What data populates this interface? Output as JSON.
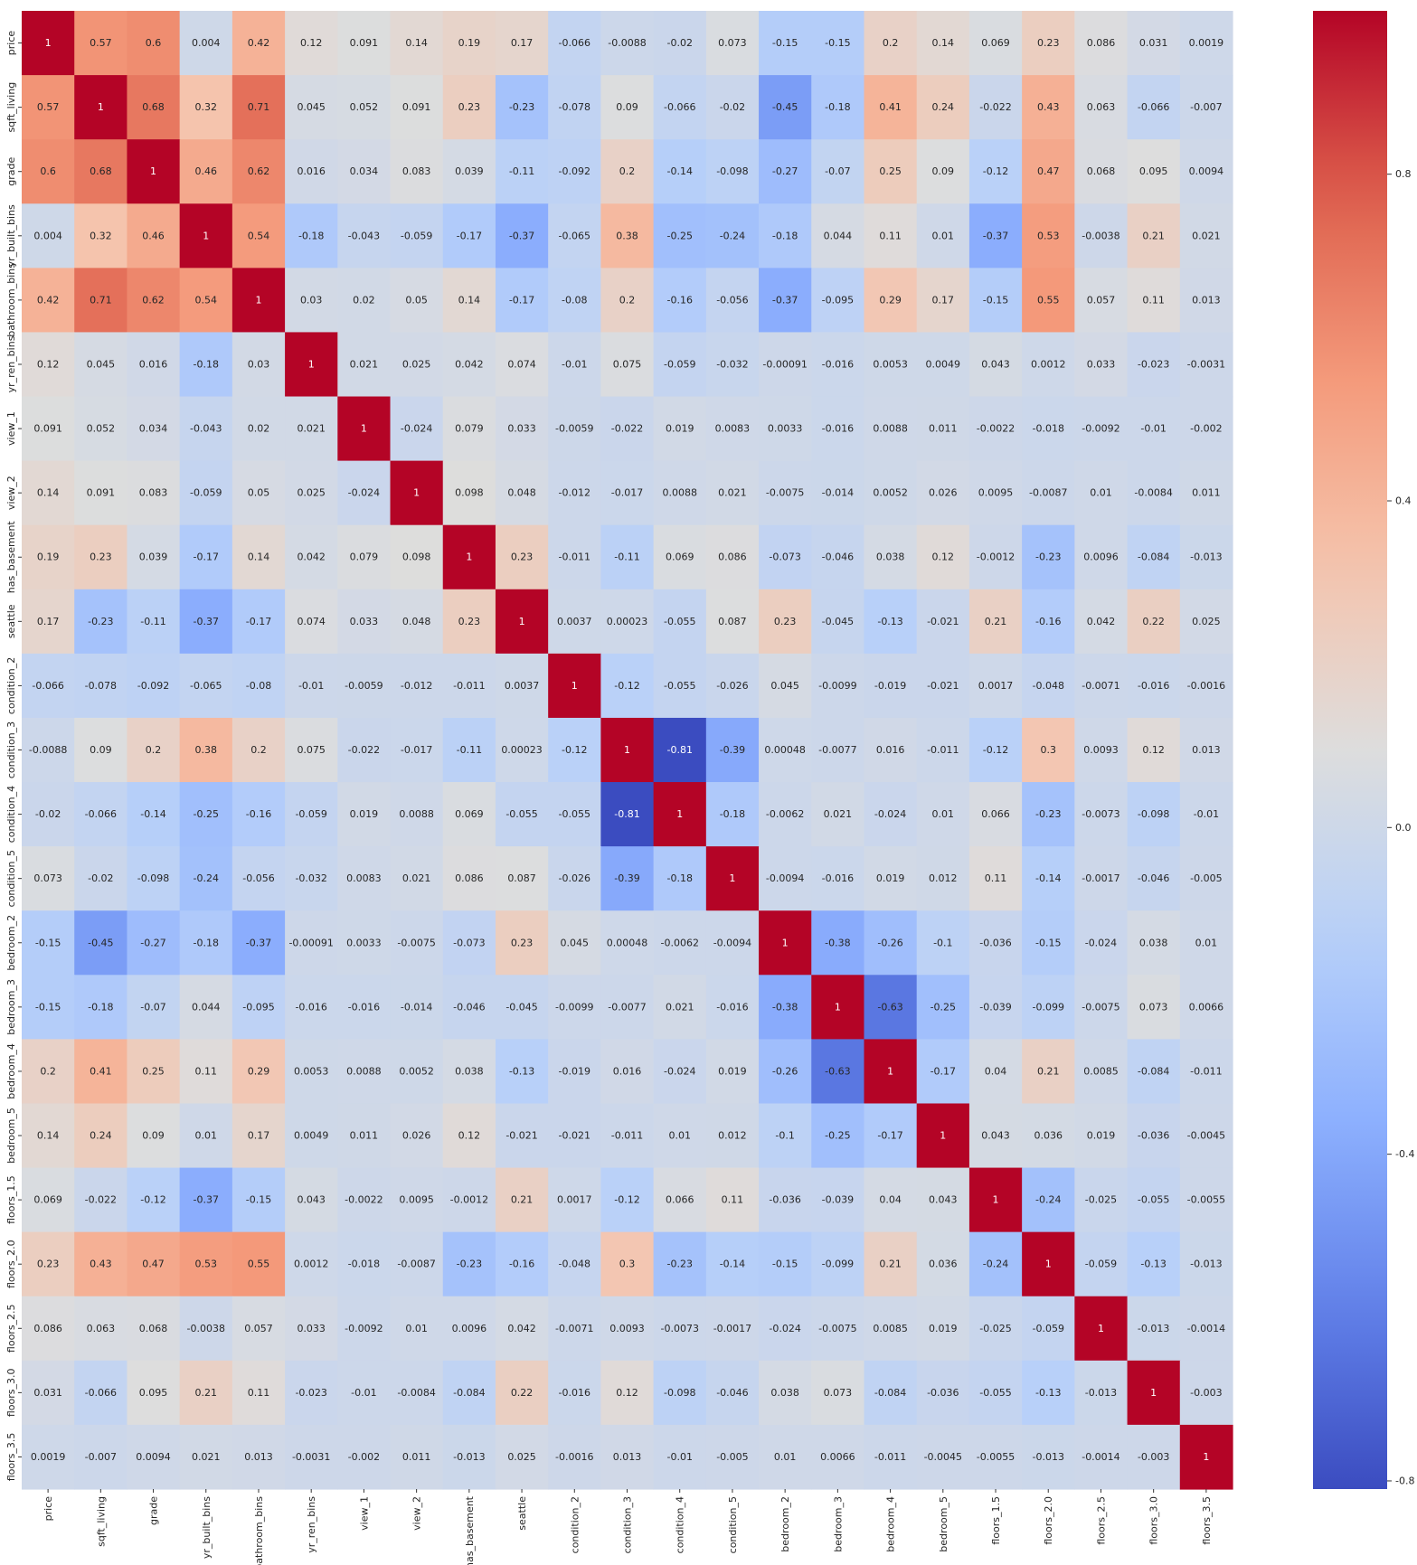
{
  "chart_data": {
    "type": "heatmap",
    "title": "",
    "xlabel": "",
    "ylabel": "",
    "labels": [
      "price",
      "sqft_living",
      "grade",
      "yr_built_bins",
      "bathroom_bins",
      "yr_ren_bins",
      "view_1",
      "view_2",
      "has_basement",
      "seattle",
      "condition_2",
      "condition_3",
      "condition_4",
      "condition_5",
      "bedroom_2",
      "bedroom_3",
      "bedroom_4",
      "bedroom_5",
      "floors_1.5",
      "floors_2.0",
      "floors_2.5",
      "floors_3.0",
      "floors_3.5"
    ],
    "matrix": [
      [
        1,
        0.57,
        0.6,
        0.004,
        0.42,
        0.12,
        0.091,
        0.14,
        0.19,
        0.17,
        -0.066,
        -0.0088,
        -0.02,
        0.073,
        -0.15,
        -0.15,
        0.2,
        0.14,
        0.069,
        0.23,
        0.086,
        0.031,
        0.0019
      ],
      [
        0.57,
        1,
        0.68,
        0.32,
        0.71,
        0.045,
        0.052,
        0.091,
        0.23,
        -0.23,
        -0.078,
        0.09,
        -0.066,
        -0.02,
        -0.45,
        -0.18,
        0.41,
        0.24,
        -0.022,
        0.43,
        0.063,
        -0.066,
        -0.007
      ],
      [
        0.6,
        0.68,
        1,
        0.46,
        0.62,
        0.016,
        0.034,
        0.083,
        0.039,
        -0.11,
        -0.092,
        0.2,
        -0.14,
        -0.098,
        -0.27,
        -0.07,
        0.25,
        0.09,
        -0.12,
        0.47,
        0.068,
        0.095,
        0.0094
      ],
      [
        0.004,
        0.32,
        0.46,
        1,
        0.54,
        -0.18,
        -0.043,
        -0.059,
        -0.17,
        -0.37,
        -0.065,
        0.38,
        -0.25,
        -0.24,
        -0.18,
        0.044,
        0.11,
        0.01,
        -0.37,
        0.53,
        -0.0038,
        0.21,
        0.021
      ],
      [
        0.42,
        0.71,
        0.62,
        0.54,
        1,
        0.03,
        0.02,
        0.05,
        0.14,
        -0.17,
        -0.08,
        0.2,
        -0.16,
        -0.056,
        -0.37,
        -0.095,
        0.29,
        0.17,
        -0.15,
        0.55,
        0.057,
        0.11,
        0.013
      ],
      [
        0.12,
        0.045,
        0.016,
        -0.18,
        0.03,
        1,
        0.021,
        0.025,
        0.042,
        0.074,
        -0.01,
        0.075,
        -0.059,
        -0.032,
        -0.00091,
        -0.016,
        0.0053,
        0.0049,
        0.043,
        0.0012,
        0.033,
        -0.023,
        -0.0031
      ],
      [
        0.091,
        0.052,
        0.034,
        -0.043,
        0.02,
        0.021,
        1,
        -0.024,
        0.079,
        0.033,
        -0.0059,
        -0.022,
        0.019,
        0.0083,
        0.0033,
        -0.016,
        0.0088,
        0.011,
        -0.0022,
        -0.018,
        -0.0092,
        -0.01,
        -0.002
      ],
      [
        0.14,
        0.091,
        0.083,
        -0.059,
        0.05,
        0.025,
        -0.024,
        1,
        0.098,
        0.048,
        -0.012,
        -0.017,
        0.0088,
        0.021,
        -0.0075,
        -0.014,
        0.0052,
        0.026,
        0.0095,
        -0.0087,
        0.01,
        -0.0084,
        0.011
      ],
      [
        0.19,
        0.23,
        0.039,
        -0.17,
        0.14,
        0.042,
        0.079,
        0.098,
        1,
        0.23,
        -0.011,
        -0.11,
        0.069,
        0.086,
        -0.073,
        -0.046,
        0.038,
        0.12,
        -0.0012,
        -0.23,
        0.0096,
        -0.084,
        -0.013
      ],
      [
        0.17,
        -0.23,
        -0.11,
        -0.37,
        -0.17,
        0.074,
        0.033,
        0.048,
        0.23,
        1,
        0.0037,
        0.00023,
        -0.055,
        0.087,
        0.23,
        -0.045,
        -0.13,
        -0.021,
        0.21,
        -0.16,
        0.042,
        0.22,
        0.025
      ],
      [
        -0.066,
        -0.078,
        -0.092,
        -0.065,
        -0.08,
        -0.01,
        -0.0059,
        -0.012,
        -0.011,
        0.0037,
        1,
        -0.12,
        -0.055,
        -0.026,
        0.045,
        -0.0099,
        -0.019,
        -0.021,
        0.0017,
        -0.048,
        -0.0071,
        -0.016,
        -0.0016
      ],
      [
        -0.0088,
        0.09,
        0.2,
        0.38,
        0.2,
        0.075,
        -0.022,
        -0.017,
        -0.11,
        0.00023,
        -0.12,
        1,
        -0.81,
        -0.39,
        0.00048,
        -0.0077,
        0.016,
        -0.011,
        -0.12,
        0.3,
        0.0093,
        0.12,
        0.013
      ],
      [
        -0.02,
        -0.066,
        -0.14,
        -0.25,
        -0.16,
        -0.059,
        0.019,
        0.0088,
        0.069,
        -0.055,
        -0.055,
        -0.81,
        1,
        -0.18,
        -0.0062,
        0.021,
        -0.024,
        0.01,
        0.066,
        -0.23,
        -0.0073,
        -0.098,
        -0.01
      ],
      [
        0.073,
        -0.02,
        -0.098,
        -0.24,
        -0.056,
        -0.032,
        0.0083,
        0.021,
        0.086,
        0.087,
        -0.026,
        -0.39,
        -0.18,
        1,
        -0.0094,
        -0.016,
        0.019,
        0.012,
        0.11,
        -0.14,
        -0.0017,
        -0.046,
        -0.005
      ],
      [
        -0.15,
        -0.45,
        -0.27,
        -0.18,
        -0.37,
        -0.00091,
        0.0033,
        -0.0075,
        -0.073,
        0.23,
        0.045,
        0.00048,
        -0.0062,
        -0.0094,
        1,
        -0.38,
        -0.26,
        -0.1,
        -0.036,
        -0.15,
        -0.024,
        0.038,
        0.01
      ],
      [
        -0.15,
        -0.18,
        -0.07,
        0.044,
        -0.095,
        -0.016,
        -0.016,
        -0.014,
        -0.046,
        -0.045,
        -0.0099,
        -0.0077,
        0.021,
        -0.016,
        -0.38,
        1,
        -0.63,
        -0.25,
        -0.039,
        -0.099,
        -0.0075,
        0.073,
        0.0066
      ],
      [
        0.2,
        0.41,
        0.25,
        0.11,
        0.29,
        0.0053,
        0.0088,
        0.0052,
        0.038,
        -0.13,
        -0.019,
        0.016,
        -0.024,
        0.019,
        -0.26,
        -0.63,
        1,
        -0.17,
        0.04,
        0.21,
        0.0085,
        -0.084,
        -0.011
      ],
      [
        0.14,
        0.24,
        0.09,
        0.01,
        0.17,
        0.0049,
        0.011,
        0.026,
        0.12,
        -0.021,
        -0.021,
        -0.011,
        0.01,
        0.012,
        -0.1,
        -0.25,
        -0.17,
        1,
        0.043,
        0.036,
        0.019,
        -0.036,
        -0.0045
      ],
      [
        0.069,
        -0.022,
        -0.12,
        -0.37,
        -0.15,
        0.043,
        -0.0022,
        0.0095,
        -0.0012,
        0.21,
        0.0017,
        -0.12,
        0.066,
        0.11,
        -0.036,
        -0.039,
        0.04,
        0.043,
        1,
        -0.24,
        -0.025,
        -0.055,
        -0.0055
      ],
      [
        0.23,
        0.43,
        0.47,
        0.53,
        0.55,
        0.0012,
        -0.018,
        -0.0087,
        -0.23,
        -0.16,
        -0.048,
        0.3,
        -0.23,
        -0.14,
        -0.15,
        -0.099,
        0.21,
        0.036,
        -0.24,
        1,
        -0.059,
        -0.13,
        -0.013
      ],
      [
        0.086,
        0.063,
        0.068,
        -0.0038,
        0.057,
        0.033,
        -0.0092,
        0.01,
        0.0096,
        0.042,
        -0.0071,
        0.0093,
        -0.0073,
        -0.0017,
        -0.024,
        -0.0075,
        0.0085,
        0.019,
        -0.025,
        -0.059,
        1,
        -0.013,
        -0.0014
      ],
      [
        0.031,
        -0.066,
        0.095,
        0.21,
        0.11,
        -0.023,
        -0.01,
        -0.0084,
        -0.084,
        0.22,
        -0.016,
        0.12,
        -0.098,
        -0.046,
        0.038,
        0.073,
        -0.084,
        -0.036,
        -0.055,
        -0.13,
        -0.013,
        1,
        -0.003
      ],
      [
        0.0019,
        -0.007,
        0.0094,
        0.021,
        0.013,
        -0.0031,
        -0.002,
        0.011,
        -0.013,
        0.025,
        -0.0016,
        0.013,
        -0.01,
        -0.005,
        0.01,
        0.0066,
        -0.011,
        -0.0045,
        -0.0055,
        -0.013,
        -0.0014,
        -0.003,
        1
      ]
    ],
    "colormap": "coolwarm",
    "vmin": -0.81,
    "vmax": 1,
    "colorbar_ticks": [
      "0.8",
      "0.4",
      "0.0",
      "-0.4",
      "-0.8"
    ],
    "annotations": true,
    "grid": false,
    "legend": "colorbar-right"
  }
}
